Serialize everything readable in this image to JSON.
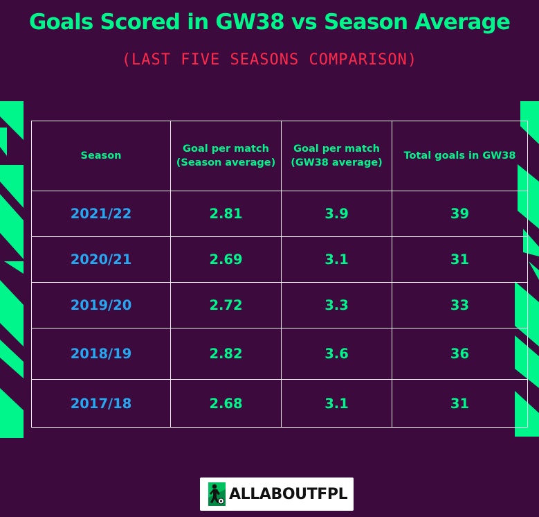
{
  "title": "Goals Scored in GW38 vs Season Average",
  "subtitle": "(LAST FIVE SEASONS COMPARISON)",
  "colors": {
    "background": "#3d0a3e",
    "accent_green": "#00f58a",
    "season_blue": "#27a7ef",
    "subtitle_red": "#ff2a4a",
    "grid_line": "#f2f2f2"
  },
  "chart_data": {
    "type": "table",
    "title": "Goals Scored in GW38 vs Season Average",
    "subtitle": "(LAST FIVE SEASONS COMPARISON)",
    "columns": [
      "Season",
      "Goal per match (Season average)",
      "Goal per match (GW38 average)",
      "Total goals in GW38"
    ],
    "rows": [
      [
        "2021/22",
        "2.81",
        "3.9",
        "39"
      ],
      [
        "2020/21",
        "2.69",
        "3.1",
        "31"
      ],
      [
        "2019/20",
        "2.72",
        "3.3",
        "33"
      ],
      [
        "2018/19",
        "2.82",
        "3.6",
        "36"
      ],
      [
        "2017/18",
        "2.68",
        "3.1",
        "31"
      ]
    ]
  },
  "branding": {
    "logo_icon": "player-with-ball-icon",
    "logo_text": "ALLABOUTFPL"
  }
}
